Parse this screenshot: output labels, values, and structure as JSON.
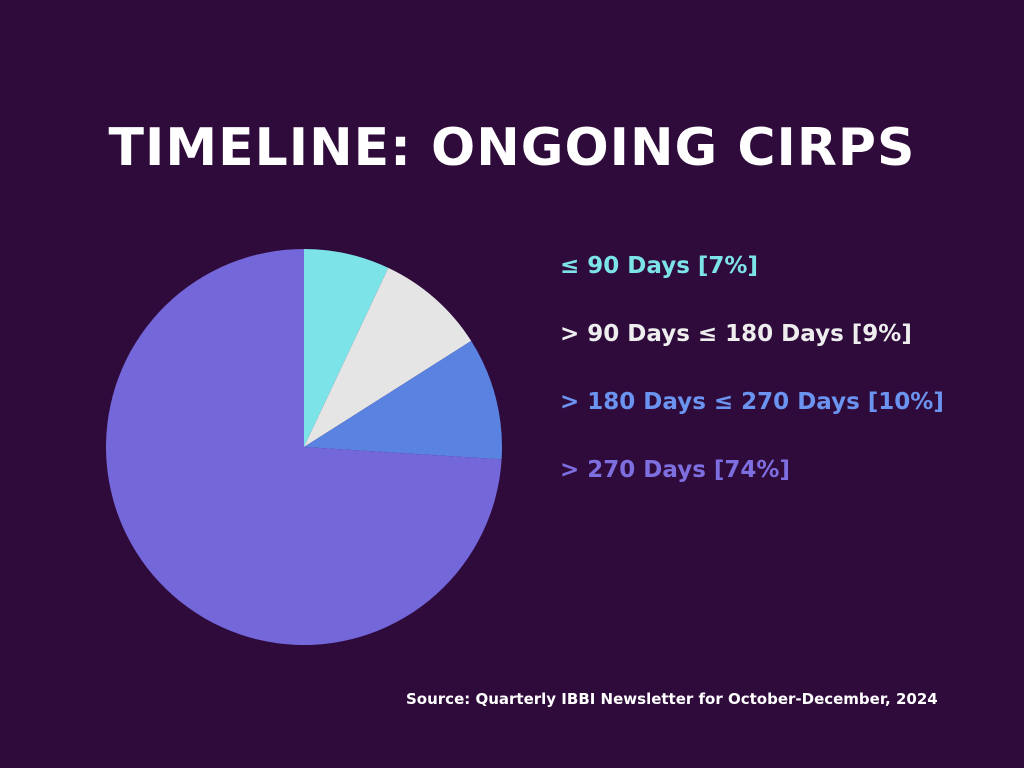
{
  "chart_data": {
    "type": "pie",
    "title": "TIMELINE: ONGOING CIRPS",
    "legend_position": "right",
    "slices": [
      {
        "label": "≤ 90 Days [7%]",
        "value": 7,
        "color": "#7ce3e9"
      },
      {
        "label": "> 90 Days ≤ 180 Days [9%]",
        "value": 9,
        "color": "#e5e5e5"
      },
      {
        "label": "> 180 Days ≤ 270 Days [10%]",
        "value": 10,
        "color": "#5a82e0"
      },
      {
        "label": "> 270 Days [74%]",
        "value": 74,
        "color": "#7467da"
      }
    ]
  },
  "legend_text_colors": [
    "#7ce3e9",
    "#eeeeee",
    "#6b93f0",
    "#7d6fe0"
  ],
  "source": "Source: Quarterly IBBI Newsletter for October-December, 2024"
}
